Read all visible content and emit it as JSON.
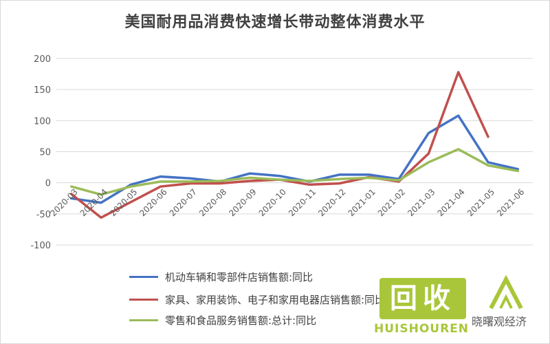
{
  "chart_data": {
    "type": "line",
    "title": "美国耐用品消费快速增长带动整体消费水平",
    "categories": [
      "2020-03",
      "2020-04",
      "2020-05",
      "2020-06",
      "2020-07",
      "2020-08",
      "2020-09",
      "2020-10",
      "2020-11",
      "2020-12",
      "2021-01",
      "2021-02",
      "2021-03",
      "2021-04",
      "2021-05",
      "2021-06"
    ],
    "ylim": [
      -100,
      200
    ],
    "yticks": [
      -100,
      -50,
      0,
      50,
      100,
      150,
      200
    ],
    "grid": true,
    "legend_position": "bottom",
    "series": [
      {
        "name": "机动车辆和零部件店销售额:同比",
        "color": "#4472c4",
        "values": [
          -25,
          -32,
          -3,
          10,
          7,
          2,
          15,
          11,
          2,
          13,
          13,
          6,
          80,
          108,
          33,
          22
        ]
      },
      {
        "name": "家具、家用装饰、电子和家用电器店销售额:同比",
        "color": "#c0504d",
        "values": [
          -18,
          -56,
          -31,
          -6,
          -1,
          -1,
          3,
          5,
          -3,
          -1,
          9,
          2,
          47,
          178,
          74,
          null
        ]
      },
      {
        "name": "零售和食品服务销售额:总计:同比",
        "color": "#9bbb59",
        "values": [
          -6,
          -19,
          -6,
          2,
          2,
          3,
          8,
          5,
          3,
          6,
          8,
          4,
          33,
          54,
          28,
          19
        ]
      }
    ]
  },
  "watermark": {
    "text": "回收",
    "brand": "HUISHOUREN",
    "source": "晓曙观经济"
  }
}
